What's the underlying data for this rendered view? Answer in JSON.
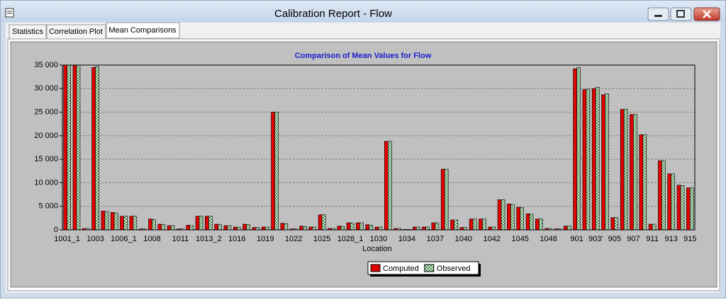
{
  "window": {
    "title": "Calibration Report - Flow",
    "tabs": [
      "Statistics",
      "Correlation Plot",
      "Mean Comparisons"
    ]
  },
  "chart_data": {
    "type": "bar",
    "title": "Comparison of Mean Values for Flow",
    "x_label": "Location",
    "categories": [
      "1001_1",
      null,
      null,
      "1003",
      null,
      null,
      "1006_1",
      null,
      null,
      "1008",
      null,
      null,
      "1011",
      null,
      null,
      "1013_2",
      null,
      null,
      "1016",
      null,
      null,
      "1019",
      null,
      null,
      "1022",
      null,
      null,
      "1025",
      null,
      null,
      "1028_1",
      null,
      null,
      "1030",
      null,
      null,
      "1034",
      null,
      null,
      "1037",
      null,
      null,
      "1040",
      null,
      null,
      "1042",
      null,
      null,
      "1045",
      null,
      null,
      "1048",
      null,
      null,
      "901",
      null,
      "903'",
      null,
      "905",
      null,
      "907",
      null,
      "911",
      null,
      "913",
      null,
      "915"
    ],
    "series": [
      {
        "name": "Computed",
        "color": "#e00000",
        "values": [
          35000,
          35000,
          300,
          34500,
          4000,
          3700,
          2900,
          2900,
          200,
          2300,
          1200,
          900,
          200,
          1000,
          2900,
          2900,
          1200,
          900,
          600,
          1200,
          500,
          600,
          25000,
          1400,
          200,
          800,
          600,
          3200,
          300,
          800,
          1500,
          1500,
          1100,
          600,
          18800,
          300,
          100,
          600,
          600,
          1500,
          12900,
          2100,
          500,
          2300,
          2300,
          600,
          6400,
          5500,
          4800,
          3400,
          2300,
          300,
          200,
          800,
          34200,
          29800,
          30000,
          28700,
          2600,
          25600,
          24500,
          20200,
          1200,
          14700,
          11900,
          9500,
          8900
        ]
      },
      {
        "name": "Observed",
        "color": "#ffffff",
        "hatch": "#2e7d32",
        "values": [
          35000,
          35000,
          300,
          34700,
          3900,
          3600,
          2900,
          2900,
          200,
          2200,
          1100,
          900,
          200,
          900,
          2900,
          2900,
          1100,
          900,
          500,
          1100,
          500,
          600,
          25000,
          1300,
          200,
          700,
          600,
          3200,
          300,
          700,
          1500,
          1500,
          1000,
          600,
          18800,
          300,
          100,
          600,
          600,
          1500,
          12900,
          2100,
          500,
          2300,
          2300,
          600,
          6400,
          5400,
          4700,
          3300,
          2300,
          300,
          200,
          800,
          34500,
          29900,
          30300,
          28900,
          2600,
          25600,
          24500,
          20200,
          1200,
          14700,
          11900,
          9400,
          8900
        ]
      }
    ],
    "ylim": [
      0,
      35000
    ],
    "yticks": [
      0,
      {
        "value": 5000,
        "label": "5 000"
      },
      {
        "value": 10000,
        "label": "10 000"
      },
      {
        "value": 15000,
        "label": "15 000"
      },
      {
        "value": 20000,
        "label": "20 000"
      },
      {
        "value": 25000,
        "label": "25 000"
      },
      {
        "value": 30000,
        "label": "30 000"
      },
      {
        "value": 35000,
        "label": "35 000"
      }
    ],
    "grid": true,
    "legend": "bottom"
  }
}
